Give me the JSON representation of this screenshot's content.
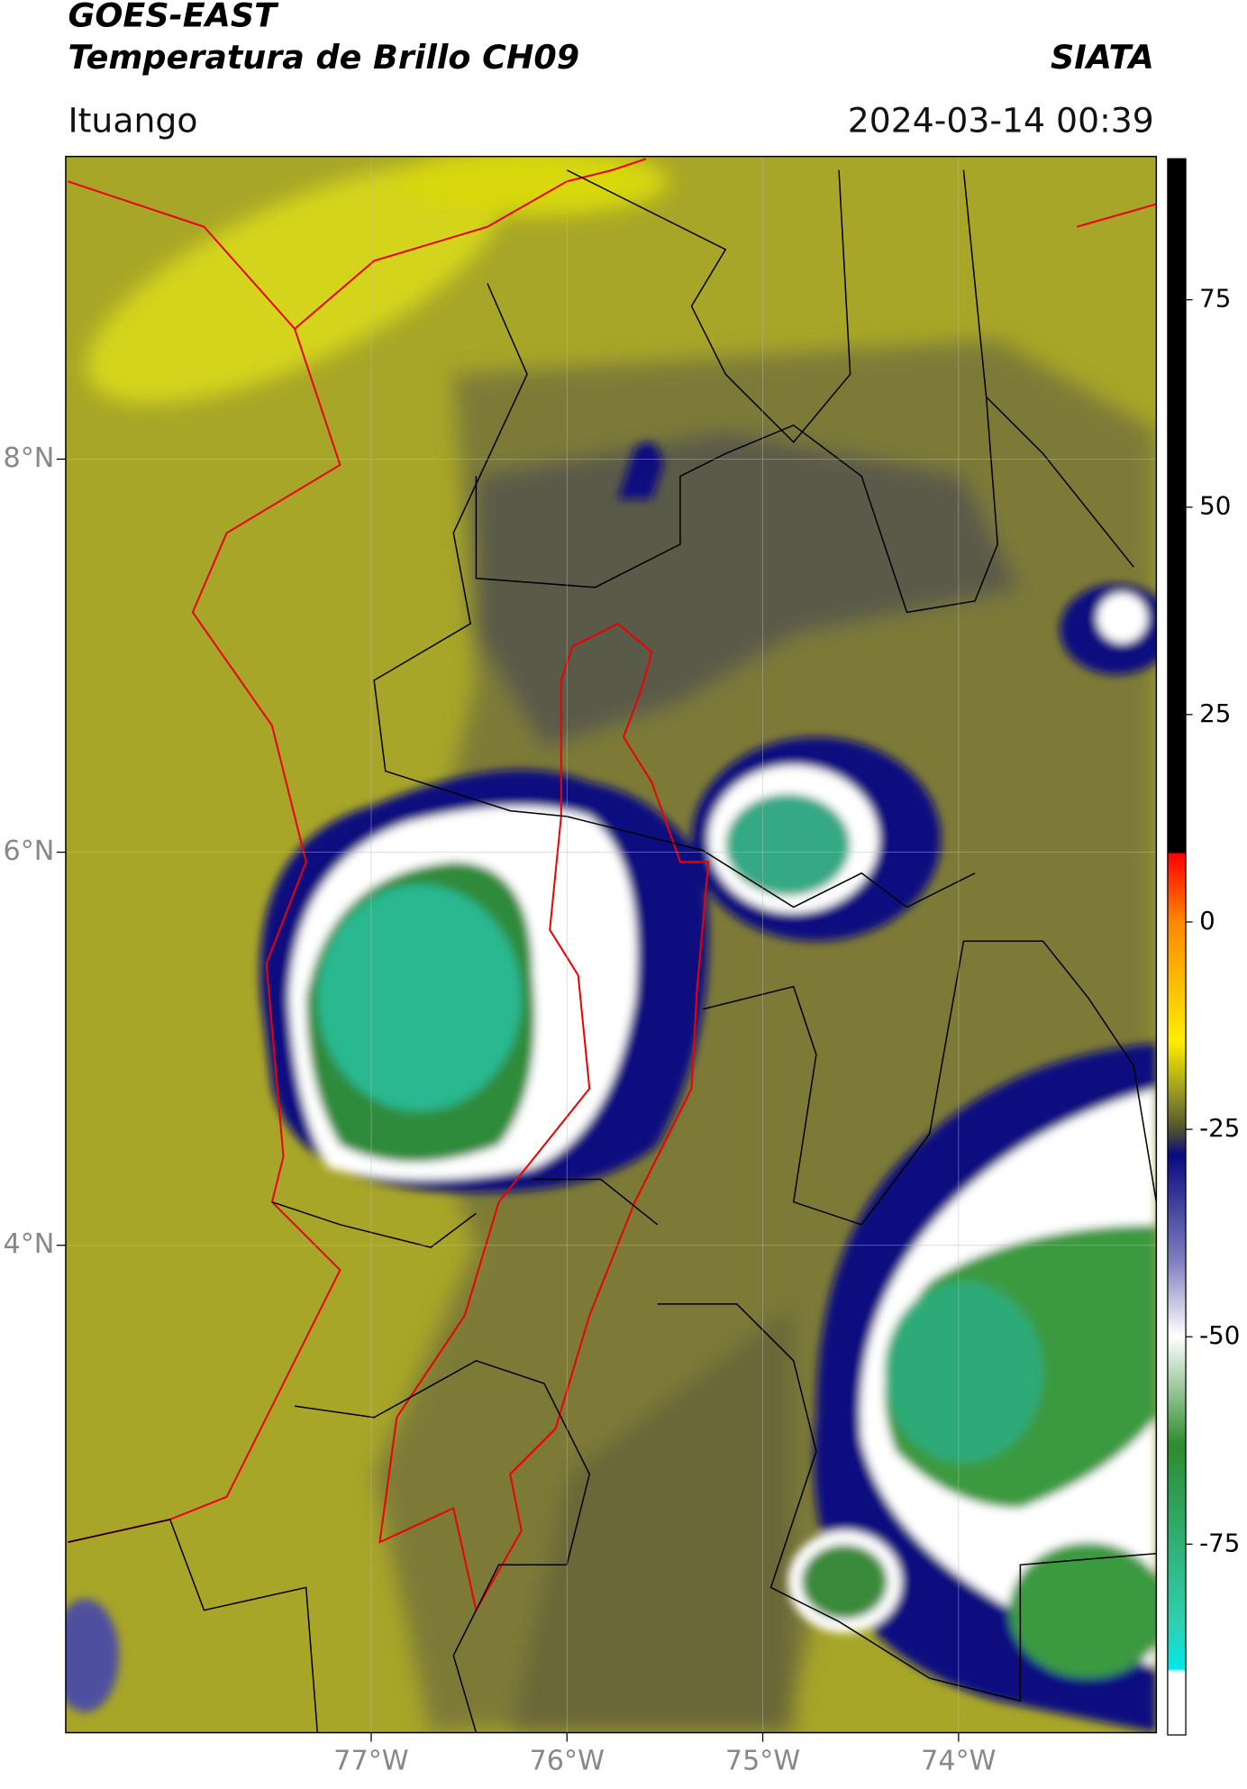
{
  "header": {
    "title": "GOES-EAST",
    "subtitle": "Temperatura de Brillo CH09",
    "source": "SIATA",
    "place": "Ituango",
    "datetime": "2024-03-14 00:39"
  },
  "map": {
    "xlim": [
      -78.56,
      -72.99
    ],
    "ylim": [
      1.52,
      9.54
    ],
    "xticks": [
      {
        "value": -77,
        "label": "77°W"
      },
      {
        "value": -76,
        "label": "76°W"
      },
      {
        "value": -75,
        "label": "75°W"
      },
      {
        "value": -74,
        "label": "74°W"
      }
    ],
    "yticks": [
      {
        "value": 8,
        "label": "8°N"
      },
      {
        "value": 6,
        "label": "6°N"
      },
      {
        "value": 4,
        "label": "4°N"
      }
    ],
    "grid": true
  },
  "colorbar": {
    "lim": [
      -98,
      92
    ],
    "ticks": [
      75,
      50,
      25,
      0,
      -25,
      -50,
      -75
    ]
  }
}
